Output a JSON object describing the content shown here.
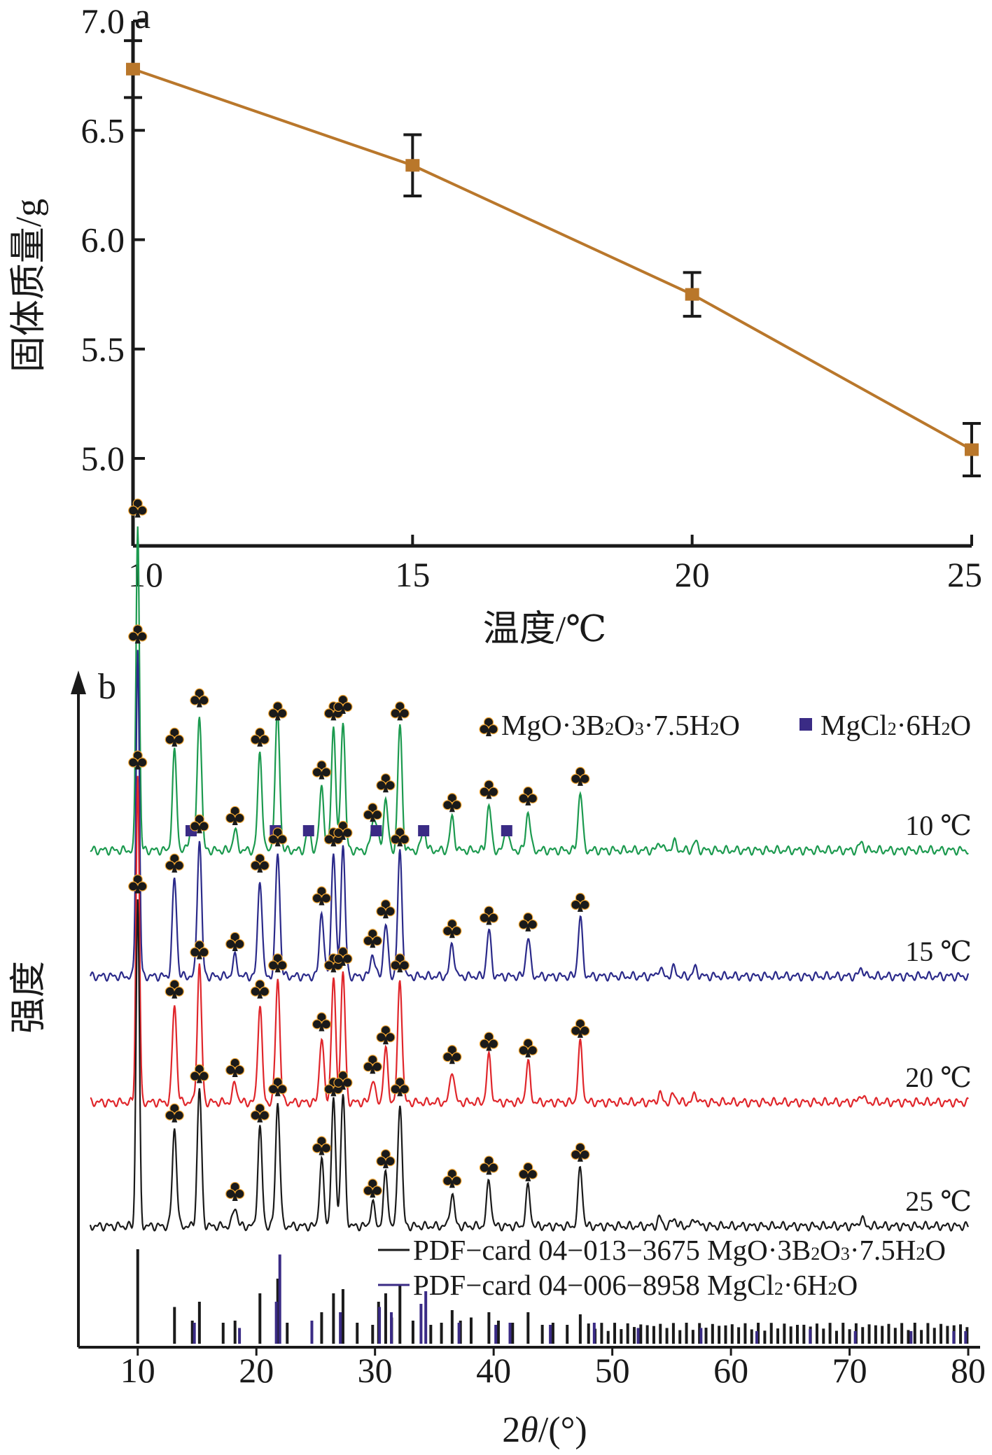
{
  "chart_data": [
    {
      "type": "line",
      "panel_label": "a",
      "title": "",
      "xlabel": "温度/℃",
      "ylabel": "固体质量/g",
      "x": [
        10,
        15,
        20,
        25
      ],
      "series": [
        {
          "name": "固体质量",
          "color": "#b9772b",
          "values": [
            6.78,
            6.34,
            5.75,
            5.04
          ],
          "error": [
            0.13,
            0.14,
            0.1,
            0.12
          ]
        }
      ],
      "xlim": [
        10,
        25
      ],
      "ylim": [
        4.6,
        7.0
      ],
      "xticks": [
        "10",
        "15",
        "20",
        "25"
      ],
      "yticks": [
        "5.0",
        "5.5",
        "6.0",
        "6.5",
        "7.0"
      ],
      "grid": false
    },
    {
      "type": "line",
      "panel_label": "b",
      "title": "",
      "xlabel": "2θ/(°)",
      "ylabel": "强度",
      "xlim": [
        5,
        81
      ],
      "xticks": [
        "10",
        "20",
        "30",
        "40",
        "50",
        "60",
        "70",
        "80"
      ],
      "legend": {
        "placement": "top-right",
        "markers": [
          {
            "symbol": "club",
            "label": "MgO·3B2O3·7.5H2O",
            "parts": [
              "MgO·3B",
              "2",
              "O",
              "3",
              "·7.5H",
              "2",
              "O"
            ]
          },
          {
            "symbol": "square",
            "label": "MgCl2·6H2O",
            "parts": [
              "MgCl",
              "2",
              "·6H",
              "2",
              "O"
            ],
            "color": "#3a2b85"
          }
        ]
      },
      "peaks_borate": [
        10.0,
        13.1,
        15.2,
        18.2,
        20.3,
        21.8,
        25.5,
        26.5,
        27.3,
        29.8,
        30.9,
        32.1,
        36.5,
        39.6,
        42.9,
        47.3
      ],
      "peak_heights": [
        1.0,
        0.3,
        0.42,
        0.06,
        0.3,
        0.38,
        0.2,
        0.38,
        0.4,
        0.07,
        0.16,
        0.38,
        0.1,
        0.14,
        0.12,
        0.18
      ],
      "series": [
        {
          "name": "10 ℃",
          "label": "10 ℃",
          "color": "#1c9a4f",
          "peaks_mgcl2": [
            14.5,
            21.6,
            24.4,
            30.1,
            34.1,
            41.1
          ]
        },
        {
          "name": "15 ℃",
          "label": "15 ℃",
          "color": "#2b2a8a",
          "peaks_mgcl2": []
        },
        {
          "name": "20 ℃",
          "label": "20 ℃",
          "color": "#e0262b",
          "peaks_mgcl2": []
        },
        {
          "name": "25 ℃",
          "label": "25 ℃",
          "color": "#1a1a1a",
          "peaks_mgcl2": []
        }
      ],
      "reference_cards": [
        {
          "label": "PDF−card 04−013−3675 MgO·3B2O3·7.5H2O",
          "parts": [
            "PDF−card 04−013−3675 MgO·3B",
            "2",
            "O",
            "3",
            "·7.5H",
            "2",
            "O"
          ],
          "color": "#1a1a1a"
        },
        {
          "label": "PDF−card 04−006−8958 MgCl2·6H2O",
          "parts": [
            "PDF−card 04−006−8958 MgCl",
            "2",
            "·6H",
            "2",
            "O"
          ],
          "color": "#3a2b85"
        }
      ]
    }
  ]
}
